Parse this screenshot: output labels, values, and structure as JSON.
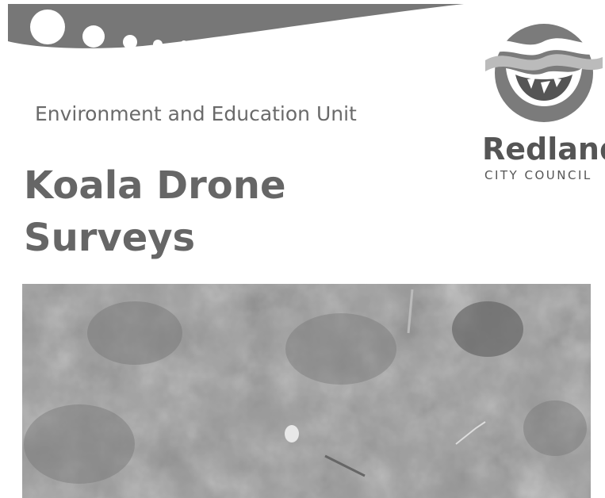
{
  "header": {
    "unit": "Environment and Education Unit"
  },
  "title": {
    "lines": [
      "Koala Drone",
      "Surveys"
    ]
  },
  "logo": {
    "name": "Redland",
    "subtitle": "CITY COUNCIL"
  }
}
